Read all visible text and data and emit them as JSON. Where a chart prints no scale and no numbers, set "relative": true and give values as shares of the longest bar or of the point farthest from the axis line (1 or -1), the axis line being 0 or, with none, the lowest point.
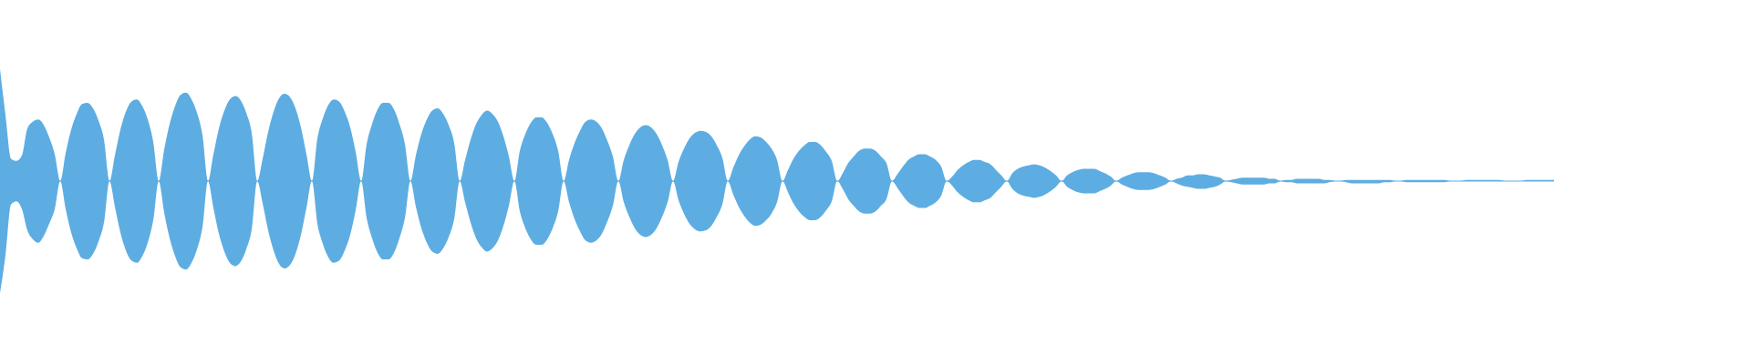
{
  "chart_data": {
    "type": "area",
    "relative": true,
    "ref_lines": [
      {
        "axis": "y",
        "value": 0,
        "color": "#5dade2"
      }
    ],
    "categories": [
      null,
      null,
      null,
      null,
      null,
      null,
      null,
      null,
      null,
      null,
      null,
      null,
      null,
      null,
      null,
      null,
      null,
      null,
      null,
      null,
      null,
      null,
      null,
      null,
      null,
      null,
      null,
      null,
      null,
      null,
      null,
      null,
      null,
      null,
      null,
      null,
      null,
      null,
      null,
      null,
      null,
      null,
      null,
      null,
      null,
      null,
      null,
      null,
      null,
      null,
      null,
      null,
      null,
      null,
      null,
      null,
      null,
      null,
      null,
      null,
      null,
      null,
      null,
      null,
      null,
      null,
      null,
      null,
      null,
      null,
      null,
      null,
      null,
      null,
      null,
      null,
      null,
      null,
      null,
      null,
      null,
      null,
      null,
      null,
      null,
      null,
      null,
      null,
      null,
      null,
      null,
      null,
      null,
      null,
      null,
      null,
      null,
      null,
      null,
      null,
      null,
      null,
      null,
      null,
      null,
      null,
      null,
      null,
      null,
      null,
      null,
      null,
      null,
      null,
      null,
      null,
      null,
      null,
      null,
      null,
      null,
      null,
      null,
      null,
      null,
      null,
      null,
      null,
      null,
      null,
      null,
      null,
      null,
      null,
      null,
      null,
      null,
      null,
      null,
      null,
      null,
      null,
      null,
      null,
      null,
      null,
      null,
      null,
      null,
      null,
      null,
      null,
      null,
      null,
      null,
      null,
      null,
      null,
      null,
      null,
      null,
      null,
      null,
      null,
      null,
      null,
      null,
      null,
      null,
      null,
      null,
      null,
      null,
      null,
      null,
      null,
      null,
      null,
      null,
      null,
      null,
      null,
      null,
      null,
      null,
      null,
      null,
      null,
      null,
      null,
      null,
      null,
      null,
      null,
      null,
      null,
      null,
      null,
      null,
      null,
      null,
      null,
      null,
      null,
      null,
      null,
      null,
      null,
      null,
      null,
      null,
      null,
      null,
      null,
      null,
      null,
      null,
      null,
      null,
      null,
      null,
      null,
      null,
      null,
      null,
      null,
      null,
      null,
      null,
      null,
      null,
      null,
      null,
      null,
      null,
      null,
      null,
      null,
      null,
      null,
      null,
      null,
      null,
      null,
      null,
      null,
      null,
      null,
      null,
      null,
      null,
      null,
      null,
      null,
      null,
      null,
      null,
      null,
      null,
      null,
      null,
      null,
      null,
      null,
      null,
      null,
      null,
      null,
      null,
      null,
      null,
      null,
      null,
      null,
      null,
      null,
      null,
      null,
      null,
      null,
      null,
      null,
      null,
      null,
      null
    ],
    "series": [
      {
        "color": "#5dade2",
        "values": [
          1.0,
          0.59,
          0.2,
          0.18,
          0.23,
          0.47,
          0.53,
          0.55,
          0.5,
          0.39,
          0.24,
          0,
          0.25,
          0.46,
          0.6,
          0.69,
          0.7,
          0.65,
          0.54,
          0.37,
          0,
          0.23,
          0.46,
          0.62,
          0.71,
          0.73,
          0.67,
          0.55,
          0.35,
          0,
          0.28,
          0.51,
          0.67,
          0.77,
          0.79,
          0.73,
          0.61,
          0.41,
          0,
          0.24,
          0.47,
          0.63,
          0.73,
          0.76,
          0.72,
          0.61,
          0.43,
          0,
          0.2,
          0.44,
          0.62,
          0.74,
          0.78,
          0.75,
          0.65,
          0.48,
          0.24,
          0,
          0.38,
          0.56,
          0.68,
          0.73,
          0.71,
          0.62,
          0.48,
          0.26,
          0,
          0.33,
          0.51,
          0.64,
          0.7,
          0.7,
          0.64,
          0.51,
          0.33,
          0,
          0.23,
          0.42,
          0.55,
          0.63,
          0.65,
          0.6,
          0.5,
          0.34,
          0,
          0.19,
          0.37,
          0.51,
          0.59,
          0.63,
          0.6,
          0.53,
          0.4,
          0.22,
          0,
          0.27,
          0.42,
          0.52,
          0.57,
          0.57,
          0.52,
          0.42,
          0.27,
          0,
          0.19,
          0.34,
          0.45,
          0.53,
          0.55,
          0.53,
          0.47,
          0.36,
          0.22,
          0,
          0.19,
          0.32,
          0.42,
          0.48,
          0.5,
          0.48,
          0.42,
          0.32,
          0.19,
          0,
          0.17,
          0.29,
          0.38,
          0.43,
          0.45,
          0.44,
          0.4,
          0.32,
          0.21,
          0,
          0.12,
          0.23,
          0.31,
          0.37,
          0.4,
          0.39,
          0.35,
          0.29,
          0.19,
          0,
          0.1,
          0.2,
          0.27,
          0.32,
          0.35,
          0.35,
          0.32,
          0.26,
          0.18,
          0,
          0.07,
          0.16,
          0.22,
          0.27,
          0.29,
          0.29,
          0.27,
          0.22,
          0.16,
          0,
          0.06,
          0.13,
          0.19,
          0.22,
          0.24,
          0.24,
          0.22,
          0.19,
          0.13,
          0,
          0.04,
          0.1,
          0.14,
          0.17,
          0.19,
          0.19,
          0.17,
          0.15,
          0.1,
          0.05,
          0,
          0.07,
          0.11,
          0.13,
          0.14,
          0.15,
          0.14,
          0.12,
          0.09,
          0.05,
          0,
          0.05,
          0.08,
          0.1,
          0.11,
          0.11,
          0.11,
          0.09,
          0.07,
          0.04,
          0,
          0.03,
          0.05,
          0.07,
          0.08,
          0.08,
          0.08,
          0.07,
          0.05,
          0.03,
          0,
          0.02,
          0.03,
          0.05,
          0.05,
          0.06,
          0.06,
          0.05,
          0.04,
          0.03,
          0,
          0.01,
          0.02,
          0.03,
          0.03,
          0.03,
          0.03,
          0.03,
          0.02,
          0.02,
          0,
          0.01,
          0.01,
          0.02,
          0.02,
          0.02,
          0.02,
          0.02,
          0.01,
          0.01,
          0,
          0,
          0.01,
          0.01,
          0.01,
          0.01,
          0.01,
          0.01,
          0.01,
          0.01,
          0.01,
          0,
          0,
          0.01,
          0.01,
          0.01,
          0.01,
          0.01,
          0.01,
          0.01,
          0.01,
          0,
          0,
          0,
          0.01,
          0.01,
          0.01,
          0.01,
          0.01,
          0.01,
          0.01,
          0,
          0,
          0,
          0,
          0.01,
          0.01,
          0.01,
          0.01,
          0.01,
          0.01
        ]
      },
      {
        "color": "#5eade2",
        "values": [
          -1.0,
          -0.66,
          -0.21,
          -0.18,
          -0.25,
          -0.44,
          -0.52,
          -0.55,
          -0.49,
          -0.38,
          -0.25,
          0,
          -0.25,
          -0.46,
          -0.6,
          -0.69,
          -0.7,
          -0.65,
          -0.54,
          -0.37,
          0,
          -0.23,
          -0.46,
          -0.62,
          -0.71,
          -0.73,
          -0.67,
          -0.55,
          -0.35,
          0,
          -0.28,
          -0.51,
          -0.67,
          -0.77,
          -0.79,
          -0.73,
          -0.61,
          -0.41,
          0,
          -0.24,
          -0.47,
          -0.63,
          -0.73,
          -0.76,
          -0.72,
          -0.61,
          -0.43,
          0,
          -0.2,
          -0.44,
          -0.62,
          -0.74,
          -0.78,
          -0.75,
          -0.65,
          -0.48,
          -0.24,
          0,
          -0.38,
          -0.56,
          -0.68,
          -0.73,
          -0.71,
          -0.62,
          -0.48,
          -0.26,
          0,
          -0.33,
          -0.51,
          -0.64,
          -0.7,
          -0.7,
          -0.64,
          -0.51,
          -0.33,
          0,
          -0.23,
          -0.42,
          -0.55,
          -0.63,
          -0.65,
          -0.6,
          -0.5,
          -0.34,
          0,
          -0.19,
          -0.37,
          -0.51,
          -0.59,
          -0.63,
          -0.6,
          -0.53,
          -0.4,
          -0.22,
          0,
          -0.27,
          -0.42,
          -0.52,
          -0.57,
          -0.57,
          -0.52,
          -0.42,
          -0.27,
          0,
          -0.19,
          -0.34,
          -0.45,
          -0.53,
          -0.55,
          -0.53,
          -0.47,
          -0.36,
          -0.22,
          0,
          -0.19,
          -0.32,
          -0.42,
          -0.48,
          -0.5,
          -0.48,
          -0.42,
          -0.32,
          -0.19,
          0,
          -0.17,
          -0.29,
          -0.38,
          -0.43,
          -0.45,
          -0.44,
          -0.4,
          -0.32,
          -0.21,
          0,
          -0.12,
          -0.23,
          -0.31,
          -0.37,
          -0.4,
          -0.39,
          -0.35,
          -0.29,
          -0.19,
          0,
          -0.1,
          -0.2,
          -0.27,
          -0.32,
          -0.35,
          -0.35,
          -0.32,
          -0.26,
          -0.18,
          0,
          -0.07,
          -0.16,
          -0.22,
          -0.27,
          -0.29,
          -0.29,
          -0.27,
          -0.22,
          -0.16,
          0,
          -0.06,
          -0.13,
          -0.19,
          -0.22,
          -0.24,
          -0.24,
          -0.22,
          -0.19,
          -0.13,
          0,
          -0.04,
          -0.1,
          -0.14,
          -0.17,
          -0.19,
          -0.19,
          -0.17,
          -0.15,
          -0.1,
          -0.05,
          0,
          -0.07,
          -0.11,
          -0.13,
          -0.14,
          -0.15,
          -0.14,
          -0.12,
          -0.09,
          -0.05,
          0,
          -0.05,
          -0.08,
          -0.1,
          -0.11,
          -0.11,
          -0.11,
          -0.09,
          -0.07,
          -0.04,
          0,
          -0.03,
          -0.05,
          -0.07,
          -0.08,
          -0.08,
          -0.08,
          -0.07,
          -0.05,
          -0.03,
          0,
          -0.02,
          -0.04,
          -0.05,
          -0.06,
          -0.07,
          -0.07,
          -0.06,
          -0.05,
          -0.03,
          0,
          -0.01,
          -0.02,
          -0.03,
          -0.03,
          -0.03,
          -0.03,
          -0.03,
          -0.02,
          -0.02,
          0,
          -0.01,
          -0.01,
          -0.02,
          -0.02,
          -0.02,
          -0.02,
          -0.02,
          -0.02,
          -0.01,
          0,
          0,
          -0.01,
          -0.02,
          -0.02,
          -0.02,
          -0.02,
          -0.02,
          -0.02,
          -0.01,
          -0.01,
          0,
          0,
          -0.01,
          -0.01,
          -0.01,
          -0.01,
          -0.01,
          -0.01,
          -0.01,
          -0.01,
          0,
          0,
          0,
          0,
          0,
          0,
          0,
          0,
          0,
          0,
          0,
          0,
          0,
          0,
          0,
          0,
          0,
          0,
          0,
          0
        ]
      }
    ]
  }
}
